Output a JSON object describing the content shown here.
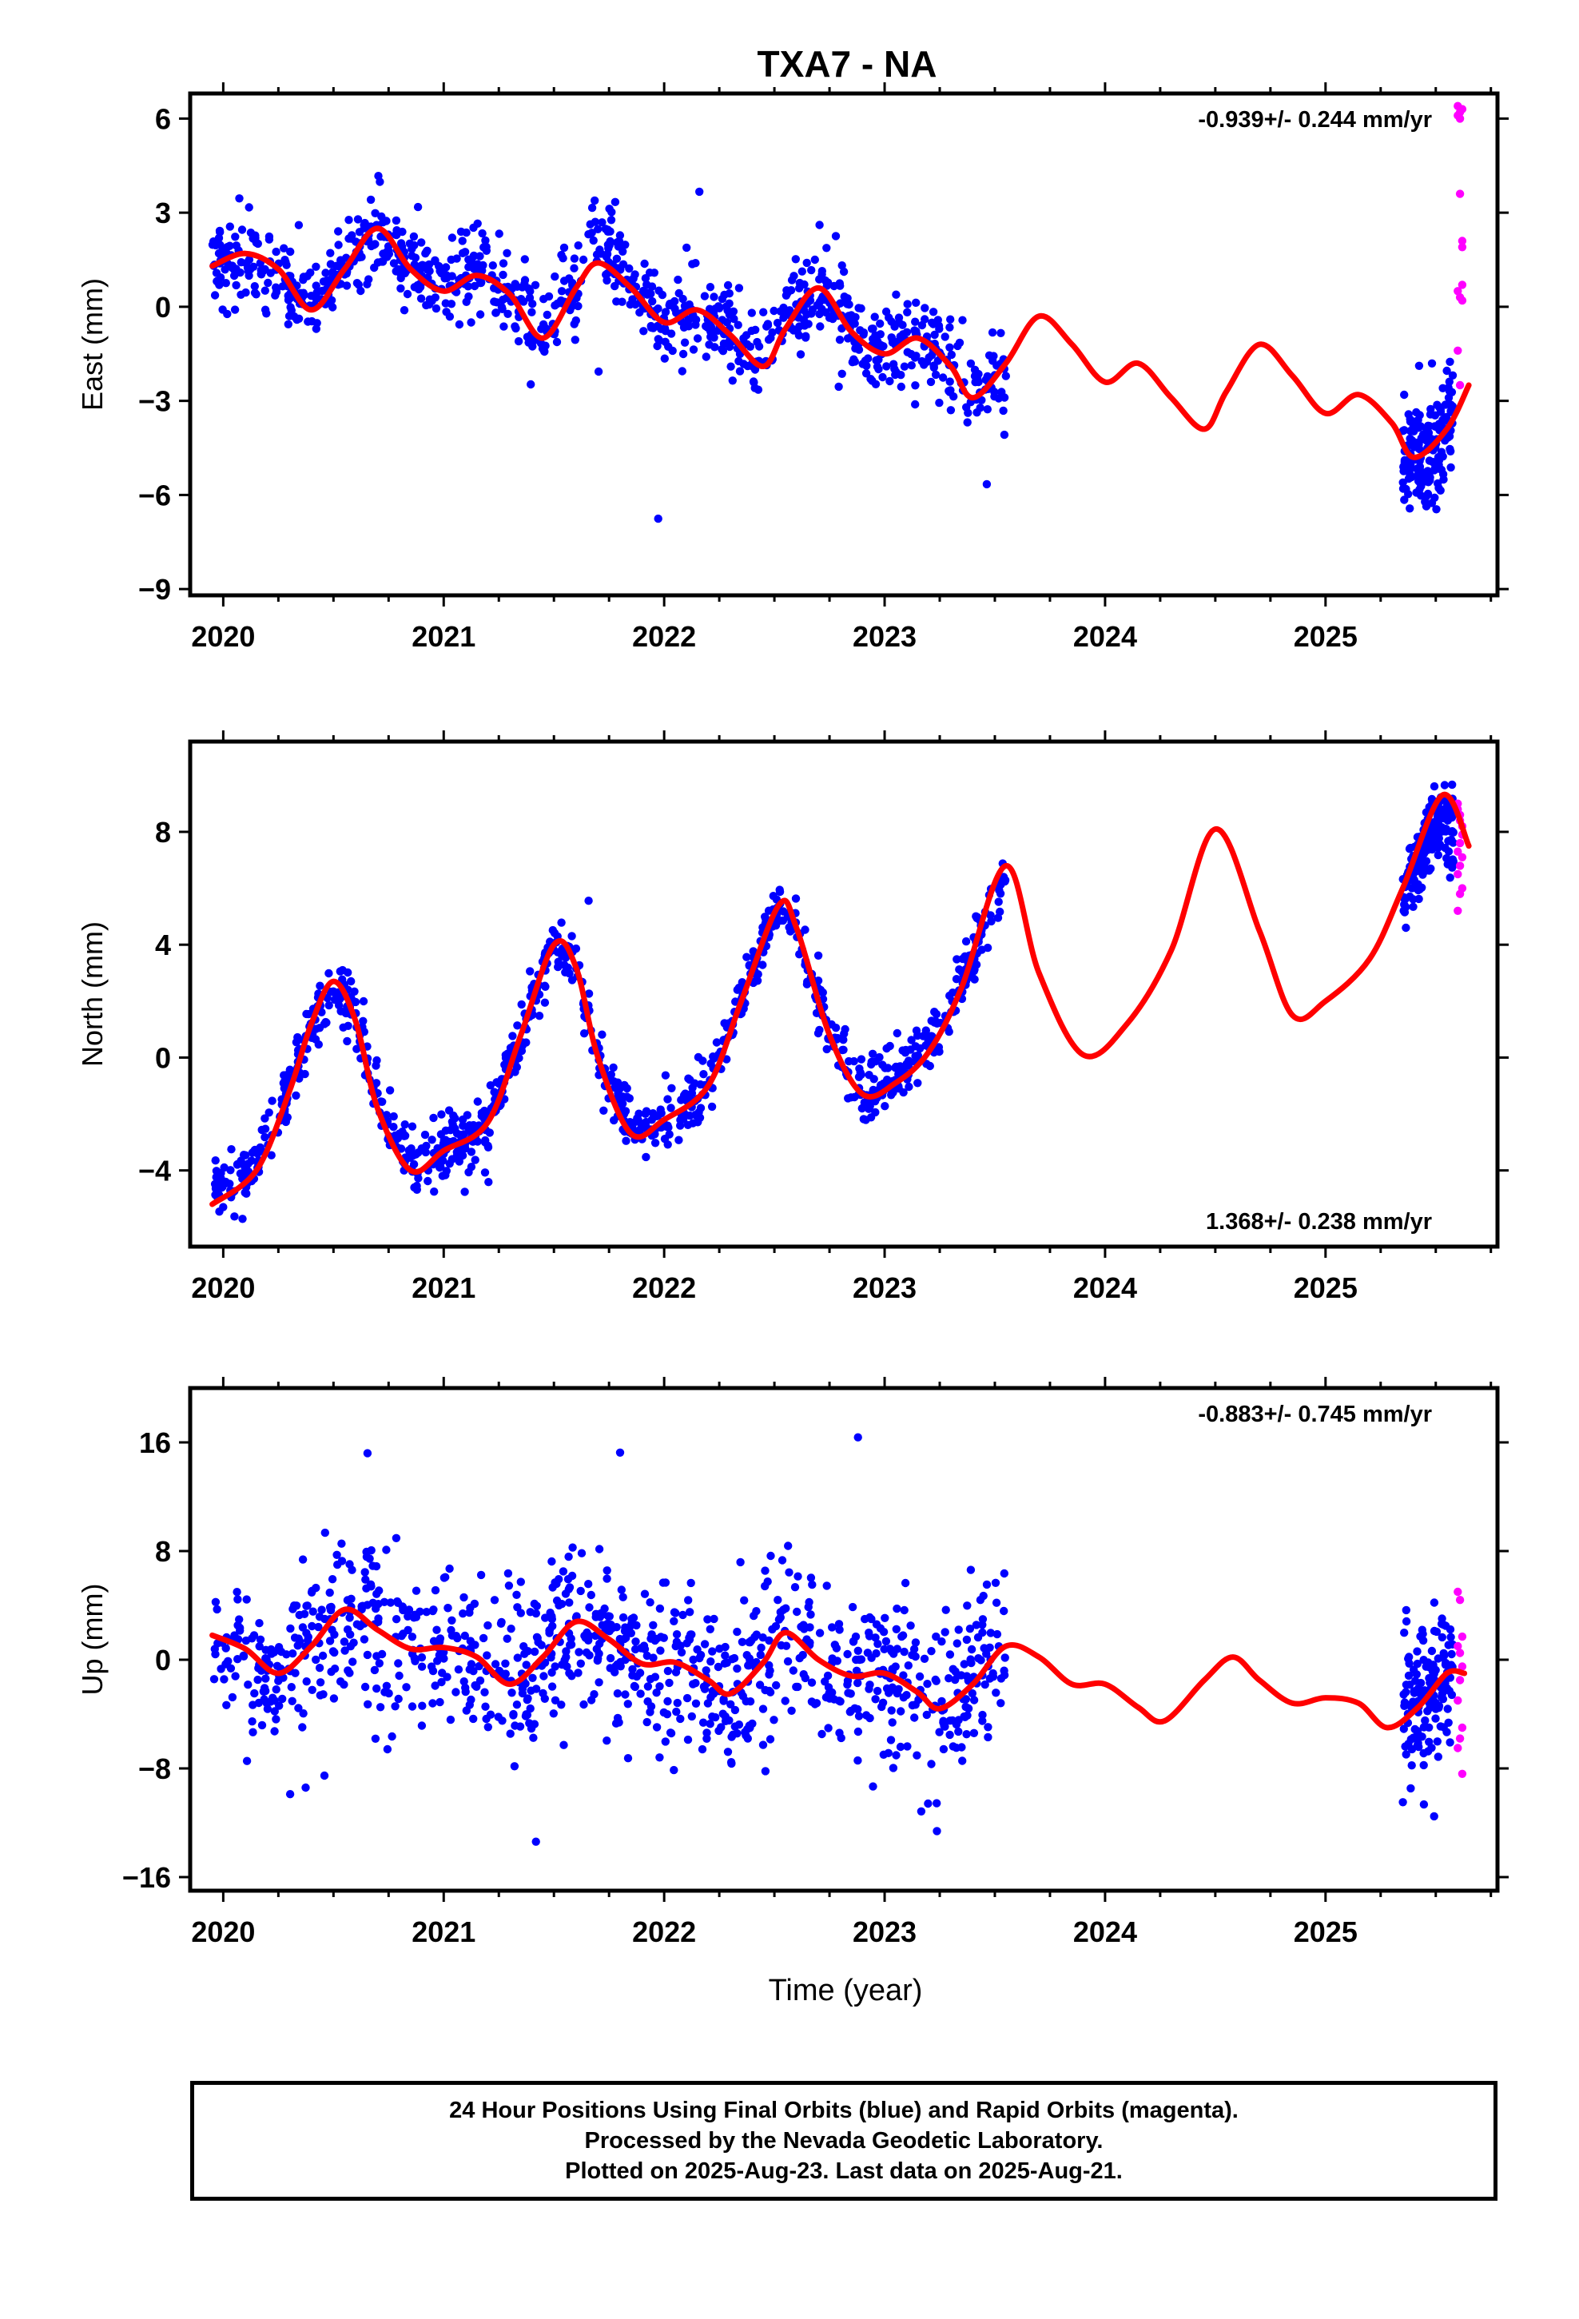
{
  "title": "TXA7 - NA",
  "xlabel": "Time (year)",
  "caption": [
    "24 Hour Positions Using Final Orbits (blue) and Rapid Orbits (magenta).",
    "Processed by the Nevada Geodetic Laboratory.",
    "Plotted on 2025-Aug-23. Last data on 2025-Aug-21."
  ],
  "colors": {
    "final": "#0000ff",
    "rapid": "#ff00ff",
    "model": "#ff0000",
    "frame": "#000000"
  },
  "chart_data": [
    {
      "id": "east",
      "type": "scatter",
      "ylabel": "East (mm)",
      "rate": "-0.939+/- 0.244 mm/yr",
      "rate_position": "top-right",
      "xlim": [
        2019.85,
        2025.78
      ],
      "ylim": [
        -9.2,
        6.8
      ],
      "xticks": [
        2020,
        2021,
        2022,
        2023,
        2024,
        2025
      ],
      "yticks": [
        6,
        3,
        0,
        -3,
        -6,
        -9
      ],
      "model": {
        "x": [
          2019.95,
          2020.1,
          2020.25,
          2020.4,
          2020.55,
          2020.7,
          2020.85,
          2021.0,
          2021.15,
          2021.3,
          2021.45,
          2021.6,
          2021.7,
          2021.85,
          2022.0,
          2022.15,
          2022.3,
          2022.45,
          2022.55,
          2022.7,
          2022.85,
          2023.0,
          2023.15,
          2023.3,
          2023.4,
          2023.55,
          2023.7,
          2023.85,
          2024.0,
          2024.15,
          2024.3,
          2024.45,
          2024.55,
          2024.7,
          2024.85,
          2025.0,
          2025.15,
          2025.3,
          2025.4,
          2025.55,
          2025.65
        ],
        "y": [
          1.3,
          1.7,
          1.2,
          -0.1,
          1.2,
          2.5,
          1.2,
          0.5,
          1.0,
          0.4,
          -1.0,
          0.6,
          1.4,
          0.6,
          -0.5,
          -0.1,
          -0.9,
          -1.9,
          -0.7,
          0.6,
          -0.8,
          -1.5,
          -1.0,
          -1.9,
          -2.9,
          -1.8,
          -0.3,
          -1.2,
          -2.4,
          -1.8,
          -2.9,
          -3.9,
          -2.7,
          -1.2,
          -2.2,
          -3.4,
          -2.8,
          -3.7,
          -4.8,
          -3.9,
          -2.5
        ]
      },
      "final": {
        "segments": [
          {
            "x0": 2019.95,
            "x1": 2023.55,
            "anchors": [
              [
                2019.95,
                1.3
              ],
              [
                2020.1,
                1.6
              ],
              [
                2020.25,
                1.0
              ],
              [
                2020.4,
                0.0
              ],
              [
                2020.55,
                1.3
              ],
              [
                2020.7,
                2.6
              ],
              [
                2020.85,
                1.2
              ],
              [
                2021.0,
                0.6
              ],
              [
                2021.15,
                1.1
              ],
              [
                2021.3,
                0.5
              ],
              [
                2021.45,
                -0.6
              ],
              [
                2021.6,
                1.0
              ],
              [
                2021.7,
                2.4
              ],
              [
                2021.85,
                0.8
              ],
              [
                2022.0,
                -0.4
              ],
              [
                2022.15,
                0.0
              ],
              [
                2022.3,
                -0.8
              ],
              [
                2022.45,
                -1.6
              ],
              [
                2022.55,
                -0.4
              ],
              [
                2022.7,
                0.8
              ],
              [
                2022.85,
                -0.8
              ],
              [
                2023.0,
                -1.4
              ],
              [
                2023.15,
                -1.0
              ],
              [
                2023.3,
                -1.9
              ],
              [
                2023.4,
                -2.8
              ],
              [
                2023.55,
                -2.2
              ]
            ],
            "spread": 0.9,
            "n": 1000
          },
          {
            "x0": 2025.35,
            "x1": 2025.58,
            "anchors": [
              [
                2025.35,
                -5.0
              ],
              [
                2025.45,
                -4.8
              ],
              [
                2025.52,
                -4.2
              ],
              [
                2025.58,
                -3.0
              ]
            ],
            "spread": 1.1,
            "n": 170
          }
        ]
      },
      "rapid": {
        "x": [
          2025.6,
          2025.6,
          2025.61,
          2025.61,
          2025.61,
          2025.62,
          2025.62,
          2025.62,
          2025.6,
          2025.61,
          2025.62,
          2025.6,
          2025.61,
          2025.62
        ],
        "y": [
          6.1,
          6.4,
          6.2,
          6.0,
          3.6,
          2.1,
          1.9,
          0.7,
          0.5,
          0.3,
          0.2,
          -1.4,
          -2.5,
          6.3
        ]
      }
    },
    {
      "id": "north",
      "type": "scatter",
      "ylabel": "North (mm)",
      "rate": "1.368+/- 0.238 mm/yr",
      "rate_position": "bottom-right",
      "xlim": [
        2019.85,
        2025.78
      ],
      "ylim": [
        -6.7,
        11.2
      ],
      "xticks": [
        2020,
        2021,
        2022,
        2023,
        2024,
        2025
      ],
      "yticks": [
        8,
        4,
        0,
        -4
      ],
      "model": {
        "x": [
          2019.95,
          2020.15,
          2020.3,
          2020.4,
          2020.5,
          2020.6,
          2020.7,
          2020.85,
          2021.0,
          2021.2,
          2021.35,
          2021.5,
          2021.6,
          2021.7,
          2021.85,
          2022.0,
          2022.2,
          2022.35,
          2022.52,
          2022.6,
          2022.75,
          2022.9,
          2023.05,
          2023.2,
          2023.35,
          2023.55,
          2023.7,
          2023.9,
          2024.1,
          2024.3,
          2024.5,
          2024.7,
          2024.85,
          2025.0,
          2025.2,
          2025.35,
          2025.53,
          2025.65
        ],
        "y": [
          -5.2,
          -4.0,
          -1.2,
          1.2,
          2.7,
          1.3,
          -1.8,
          -4.0,
          -3.3,
          -2.3,
          0.8,
          4.0,
          3.2,
          0.0,
          -2.7,
          -2.2,
          -1.0,
          2.0,
          5.4,
          4.6,
          0.8,
          -1.3,
          -0.9,
          0.2,
          2.5,
          6.8,
          3.0,
          0.1,
          1.2,
          3.8,
          8.1,
          4.5,
          1.5,
          2.0,
          3.5,
          6.0,
          9.3,
          7.5
        ]
      },
      "final": {
        "segments": [
          {
            "x0": 2019.95,
            "x1": 2023.55,
            "anchors": [
              [
                2019.95,
                -5.0
              ],
              [
                2020.15,
                -3.8
              ],
              [
                2020.3,
                -1.0
              ],
              [
                2020.4,
                1.2
              ],
              [
                2020.5,
                2.7
              ],
              [
                2020.6,
                1.3
              ],
              [
                2020.7,
                -1.8
              ],
              [
                2020.85,
                -3.7
              ],
              [
                2021.0,
                -3.3
              ],
              [
                2021.2,
                -2.3
              ],
              [
                2021.35,
                0.8
              ],
              [
                2021.5,
                4.2
              ],
              [
                2021.6,
                3.2
              ],
              [
                2021.7,
                0.0
              ],
              [
                2021.85,
                -2.5
              ],
              [
                2022.0,
                -2.2
              ],
              [
                2022.2,
                -1.0
              ],
              [
                2022.35,
                2.0
              ],
              [
                2022.52,
                5.3
              ],
              [
                2022.6,
                4.6
              ],
              [
                2022.75,
                0.8
              ],
              [
                2022.9,
                -1.3
              ],
              [
                2023.05,
                -0.6
              ],
              [
                2023.2,
                0.5
              ],
              [
                2023.35,
                2.8
              ],
              [
                2023.55,
                6.5
              ]
            ],
            "spread": 0.7,
            "n": 1000
          },
          {
            "x0": 2025.35,
            "x1": 2025.58,
            "anchors": [
              [
                2025.35,
                5.6
              ],
              [
                2025.45,
                7.4
              ],
              [
                2025.52,
                8.6
              ],
              [
                2025.58,
                8.0
              ]
            ],
            "spread": 0.9,
            "n": 170
          }
        ]
      },
      "rapid": {
        "x": [
          2025.6,
          2025.6,
          2025.61,
          2025.61,
          2025.62,
          2025.62,
          2025.61,
          2025.6,
          2025.62,
          2025.61,
          2025.6,
          2025.62,
          2025.61,
          2025.6
        ],
        "y": [
          9.0,
          8.8,
          8.6,
          8.4,
          8.2,
          7.9,
          7.6,
          7.3,
          7.1,
          6.8,
          6.5,
          6.0,
          5.8,
          5.2
        ]
      }
    },
    {
      "id": "up",
      "type": "scatter",
      "ylabel": "Up (mm)",
      "rate": "-0.883+/- 0.745 mm/yr",
      "rate_position": "top-right",
      "xlim": [
        2019.85,
        2025.78
      ],
      "ylim": [
        -17.0,
        20.0
      ],
      "xticks": [
        2020,
        2021,
        2022,
        2023,
        2024,
        2025
      ],
      "yticks": [
        16,
        8,
        0,
        -8,
        -16
      ],
      "model": {
        "x": [
          2019.95,
          2020.1,
          2020.25,
          2020.4,
          2020.55,
          2020.7,
          2020.85,
          2021.0,
          2021.15,
          2021.3,
          2021.45,
          2021.6,
          2021.75,
          2021.9,
          2022.05,
          2022.2,
          2022.3,
          2022.45,
          2022.55,
          2022.7,
          2022.85,
          2023.0,
          2023.15,
          2023.25,
          2023.4,
          2023.55,
          2023.7,
          2023.85,
          2024.0,
          2024.15,
          2024.27,
          2024.45,
          2024.58,
          2024.7,
          2024.85,
          2025.0,
          2025.15,
          2025.28,
          2025.42,
          2025.55,
          2025.63
        ],
        "y": [
          1.8,
          0.8,
          -1.0,
          1.0,
          3.7,
          2.2,
          0.8,
          0.9,
          0.2,
          -1.8,
          0.2,
          2.8,
          1.5,
          -0.3,
          -0.2,
          -1.5,
          -2.5,
          -0.2,
          2.0,
          0.0,
          -1.2,
          -1.0,
          -2.4,
          -3.6,
          -1.8,
          1.0,
          0.2,
          -1.8,
          -1.8,
          -3.5,
          -4.5,
          -1.5,
          0.2,
          -1.5,
          -3.2,
          -2.8,
          -3.2,
          -5.0,
          -3.5,
          -1.0,
          -1.0
        ]
      },
      "final": {
        "segments": [
          {
            "x0": 2019.95,
            "x1": 2023.55,
            "anchors": [
              [
                2019.95,
                2.0
              ],
              [
                2020.1,
                1.0
              ],
              [
                2020.25,
                -1.0
              ],
              [
                2020.4,
                1.0
              ],
              [
                2020.55,
                3.7
              ],
              [
                2020.7,
                2.5
              ],
              [
                2020.85,
                1.0
              ],
              [
                2021.0,
                0.9
              ],
              [
                2021.15,
                0.2
              ],
              [
                2021.3,
                -1.8
              ],
              [
                2021.45,
                0.2
              ],
              [
                2021.6,
                2.8
              ],
              [
                2021.75,
                1.5
              ],
              [
                2021.9,
                -0.3
              ],
              [
                2022.05,
                -0.2
              ],
              [
                2022.2,
                -1.5
              ],
              [
                2022.3,
                -2.5
              ],
              [
                2022.45,
                -0.2
              ],
              [
                2022.55,
                2.0
              ],
              [
                2022.7,
                0.0
              ],
              [
                2022.85,
                -1.2
              ],
              [
                2023.0,
                -1.0
              ],
              [
                2023.15,
                -2.4
              ],
              [
                2023.25,
                -3.6
              ],
              [
                2023.4,
                -1.8
              ],
              [
                2023.55,
                1.0
              ]
            ],
            "spread": 4.0,
            "n": 1000
          },
          {
            "x0": 2025.35,
            "x1": 2025.58,
            "anchors": [
              [
                2025.35,
                -4.0
              ],
              [
                2025.45,
                -3.0
              ],
              [
                2025.52,
                -1.5
              ],
              [
                2025.58,
                -1.0
              ]
            ],
            "spread": 3.5,
            "n": 150
          }
        ]
      },
      "rapid": {
        "x": [
          2025.6,
          2025.61,
          2025.62,
          2025.6,
          2025.61,
          2025.62,
          2025.61,
          2025.6,
          2025.62,
          2025.61,
          2025.6,
          2025.62
        ],
        "y": [
          5.0,
          4.4,
          1.7,
          1.0,
          0.5,
          -0.5,
          -1.5,
          -3.0,
          -5.0,
          -5.8,
          -6.5,
          -8.4
        ]
      }
    }
  ]
}
